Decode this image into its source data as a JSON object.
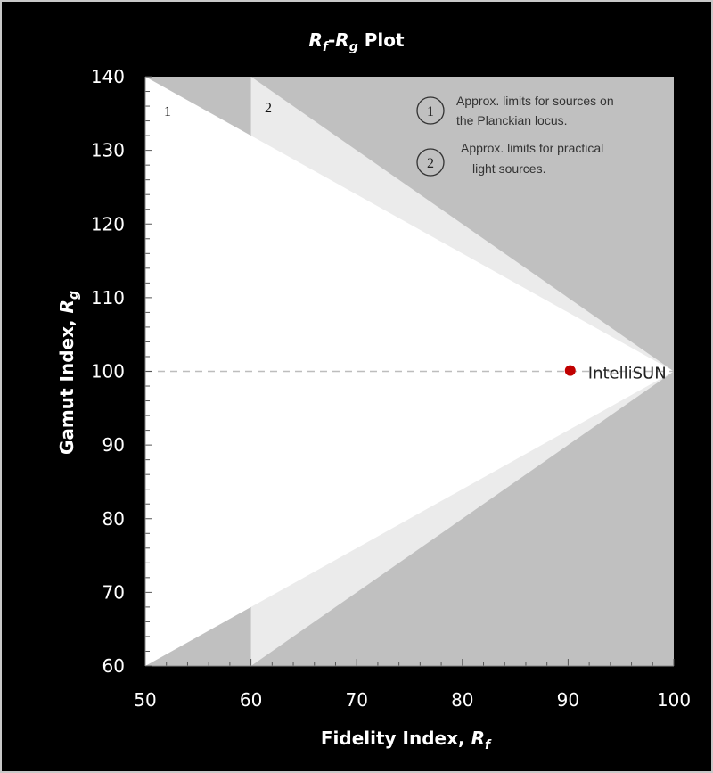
{
  "chart_data": {
    "type": "scatter",
    "title": {
      "main": "R",
      "main_sub": "f",
      "dash": "-",
      "second": "R",
      "second_sub": "g",
      "tail": " Plot"
    },
    "xlabel": {
      "text": "Fidelity Index, ",
      "var": "R",
      "sub": "f"
    },
    "ylabel": {
      "text": "Gamut Index, ",
      "var": "R",
      "sub": "g"
    },
    "xlim": [
      50,
      100
    ],
    "ylim": [
      60,
      140
    ],
    "xticks": [
      50,
      60,
      70,
      80,
      90,
      100
    ],
    "yticks": [
      60,
      70,
      80,
      90,
      100,
      110,
      120,
      130,
      140
    ],
    "grid": false,
    "reference_line_y": 100,
    "regions": [
      {
        "id": "1",
        "label": "1",
        "boundary": [
          [
            50,
            140
          ],
          [
            100,
            100
          ],
          [
            50,
            60
          ]
        ],
        "color": "#ffffff"
      },
      {
        "id": "2",
        "label": "2",
        "boundary": [
          [
            60,
            140
          ],
          [
            100,
            100
          ],
          [
            60,
            60
          ]
        ],
        "color": "#ebebeb"
      }
    ],
    "outside_color": "#c0c0c0",
    "points": [
      {
        "x": 90.2,
        "y": 100.1,
        "label": "IntelliSUN",
        "color": "#c00000"
      }
    ],
    "annotations": [
      {
        "marker": "1",
        "line1": "Approx. limits for sources on",
        "line2": "the Planckian locus."
      },
      {
        "marker": "2",
        "line1": "Approx. limits for practical",
        "line2": "light sources."
      }
    ]
  },
  "colors": {
    "background": "#000000",
    "border": "#c8c8c8",
    "text": "#ffffff"
  }
}
